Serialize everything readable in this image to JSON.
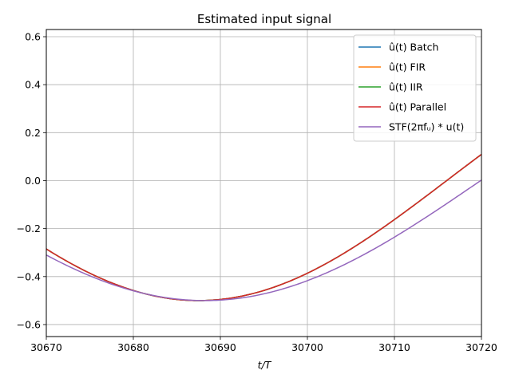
{
  "chart_data": {
    "type": "line",
    "title": "Estimated input signal",
    "xlabel": "t/T",
    "ylabel": "",
    "xlim": [
      30670,
      30720
    ],
    "ylim": [
      -0.65,
      0.63
    ],
    "xticks": [
      30670,
      30680,
      30690,
      30700,
      30710,
      30720
    ],
    "xtick_labels": [
      "30670",
      "30680",
      "30690",
      "30700",
      "30710",
      "30720"
    ],
    "yticks": [
      -0.6,
      -0.4,
      -0.2,
      0.0,
      0.2,
      0.4,
      0.6
    ],
    "ytick_labels": [
      "−0.6",
      "−0.4",
      "−0.2",
      "0.0",
      "0.2",
      "0.4",
      "0.6"
    ],
    "grid": true,
    "legend_position": "upper-right",
    "series": [
      {
        "name": "û(t) Batch",
        "color": "#1f77b4",
        "amplitude": 0.5,
        "min_at": 30687.5,
        "half_period": 57
      },
      {
        "name": "û(t) FIR",
        "color": "#ff7f0e",
        "amplitude": 0.5,
        "min_at": 30687.5,
        "half_period": 57
      },
      {
        "name": "û(t) IIR",
        "color": "#2ca02c",
        "amplitude": 0.5,
        "min_at": 30687.5,
        "half_period": 57
      },
      {
        "name": "û(t) Parallel",
        "color": "#d62728",
        "amplitude": 0.5,
        "min_at": 30687.5,
        "half_period": 57
      },
      {
        "name": "STF(2πfᵤ) * u(t)",
        "color": "#9467bd",
        "amplitude": 0.5,
        "min_at": 30688.2,
        "half_period": 63.4
      }
    ]
  }
}
